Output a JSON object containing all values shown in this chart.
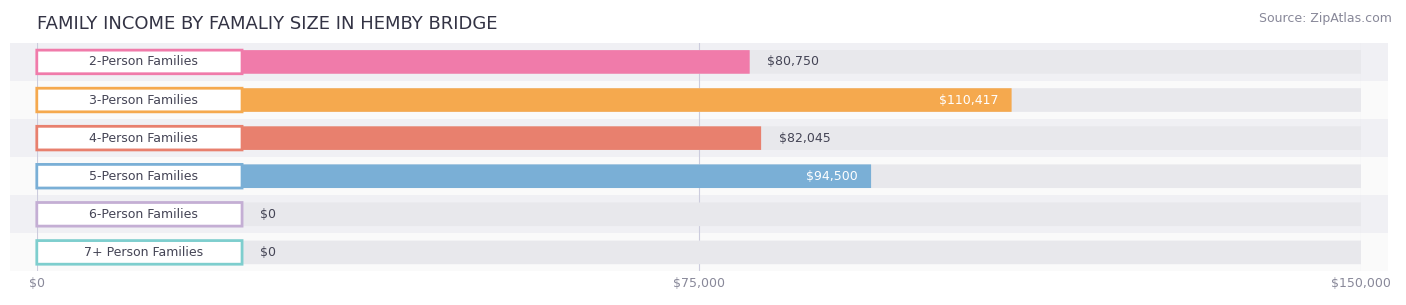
{
  "title": "FAMILY INCOME BY FAMALIY SIZE IN HEMBY BRIDGE",
  "source": "Source: ZipAtlas.com",
  "categories": [
    "2-Person Families",
    "3-Person Families",
    "4-Person Families",
    "5-Person Families",
    "6-Person Families",
    "7+ Person Families"
  ],
  "values": [
    80750,
    110417,
    82045,
    94500,
    0,
    0
  ],
  "bar_colors": [
    "#f07baa",
    "#f5a94e",
    "#e8806e",
    "#7aafd6",
    "#c4aed4",
    "#7ecece"
  ],
  "value_labels": [
    "$80,750",
    "$110,417",
    "$82,045",
    "$94,500",
    "$0",
    "$0"
  ],
  "value_inside": [
    false,
    true,
    false,
    true,
    false,
    false
  ],
  "xlim": [
    0,
    150000
  ],
  "xticks": [
    0,
    75000,
    150000
  ],
  "xticklabels": [
    "$0",
    "$75,000",
    "$150,000"
  ],
  "bg_stripe_color": "#f0f0f4",
  "bg_white_color": "#fafafa",
  "bar_track_color": "#e8e8ec",
  "title_fontsize": 13,
  "source_fontsize": 9,
  "label_fontsize": 9,
  "value_fontsize": 9
}
